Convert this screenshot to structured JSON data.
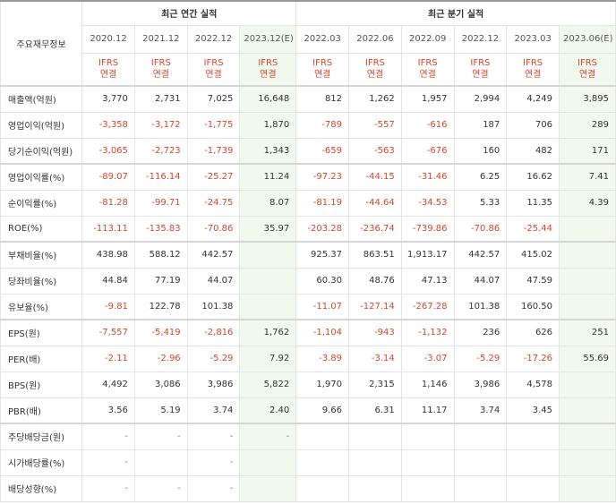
{
  "header": {
    "corner_label": "주요재무정보",
    "annual_group": "최근 연간 실적",
    "quarter_group": "최근 분기 실적"
  },
  "periods": {
    "annual": [
      "2020.12",
      "2021.12",
      "2022.12",
      "2023.12(E)"
    ],
    "quarter": [
      "2022.03",
      "2022.06",
      "2022.09",
      "2022.12",
      "2023.03",
      "2023.06(E)"
    ]
  },
  "ifrs": {
    "line1": "IFRS",
    "line2": "연결"
  },
  "rows": [
    {
      "label": "매출액(억원)",
      "values": [
        "3,770",
        "2,731",
        "7,025",
        "16,648",
        "812",
        "1,262",
        "1,957",
        "2,994",
        "4,249",
        "3,895"
      ]
    },
    {
      "label": "영업이익(억원)",
      "values": [
        "-3,358",
        "-3,172",
        "-1,775",
        "1,870",
        "-789",
        "-557",
        "-616",
        "187",
        "706",
        "289"
      ]
    },
    {
      "label": "당기순이익(억원)",
      "values": [
        "-3,065",
        "-2,723",
        "-1,739",
        "1,343",
        "-659",
        "-563",
        "-676",
        "160",
        "482",
        "171"
      ]
    },
    {
      "label": "영업이익률(%)",
      "values": [
        "-89.07",
        "-116.14",
        "-25.27",
        "11.24",
        "-97.23",
        "-44.15",
        "-31.46",
        "6.25",
        "16.62",
        "7.41"
      ]
    },
    {
      "label": "순이익률(%)",
      "values": [
        "-81.28",
        "-99.71",
        "-24.75",
        "8.07",
        "-81.19",
        "-44.64",
        "-34.53",
        "5.33",
        "11.35",
        "4.39"
      ]
    },
    {
      "label": "ROE(%)",
      "values": [
        "-113.11",
        "-135.83",
        "-70.86",
        "35.97",
        "-203.28",
        "-236.74",
        "-739.86",
        "-70.86",
        "-25.44",
        ""
      ]
    },
    {
      "label": "부채비율(%)",
      "values": [
        "438.98",
        "588.12",
        "442.57",
        "",
        "925.37",
        "863.51",
        "1,913.17",
        "442.57",
        "415.02",
        ""
      ]
    },
    {
      "label": "당좌비율(%)",
      "values": [
        "44.84",
        "77.19",
        "44.07",
        "",
        "60.30",
        "48.76",
        "47.13",
        "44.07",
        "47.59",
        ""
      ]
    },
    {
      "label": "유보율(%)",
      "values": [
        "-9.81",
        "122.78",
        "101.38",
        "",
        "-11.07",
        "-127.14",
        "-267.28",
        "101.38",
        "160.50",
        ""
      ]
    },
    {
      "label": "EPS(원)",
      "values": [
        "-7,557",
        "-5,419",
        "-2,816",
        "1,762",
        "-1,104",
        "-943",
        "-1,132",
        "236",
        "626",
        "251"
      ]
    },
    {
      "label": "PER(배)",
      "values": [
        "-2.11",
        "-2.96",
        "-5.29",
        "7.92",
        "-3.89",
        "-3.14",
        "-3.07",
        "-5.29",
        "-17.26",
        "55.69"
      ]
    },
    {
      "label": "BPS(원)",
      "values": [
        "4,492",
        "3,086",
        "3,986",
        "5,822",
        "1,970",
        "2,315",
        "1,146",
        "3,986",
        "4,578",
        ""
      ]
    },
    {
      "label": "PBR(배)",
      "values": [
        "3.56",
        "5.19",
        "3.74",
        "2.40",
        "9.66",
        "6.31",
        "11.17",
        "3.74",
        "3.45",
        ""
      ]
    },
    {
      "label": "주당배당금(원)",
      "values": [
        "-",
        "-",
        "-",
        "-",
        "",
        "",
        "",
        "",
        "",
        ""
      ]
    },
    {
      "label": "시가배당률(%)",
      "values": [
        "-",
        "",
        "-",
        "",
        "",
        "",
        "",
        "",
        "",
        ""
      ]
    },
    {
      "label": "배당성향(%)",
      "values": [
        "-",
        "-",
        "-",
        "",
        "",
        "",
        "",
        "",
        "",
        ""
      ]
    }
  ],
  "colors": {
    "negative": "#d4462c",
    "estimate_bg": "#f1f8ee"
  }
}
